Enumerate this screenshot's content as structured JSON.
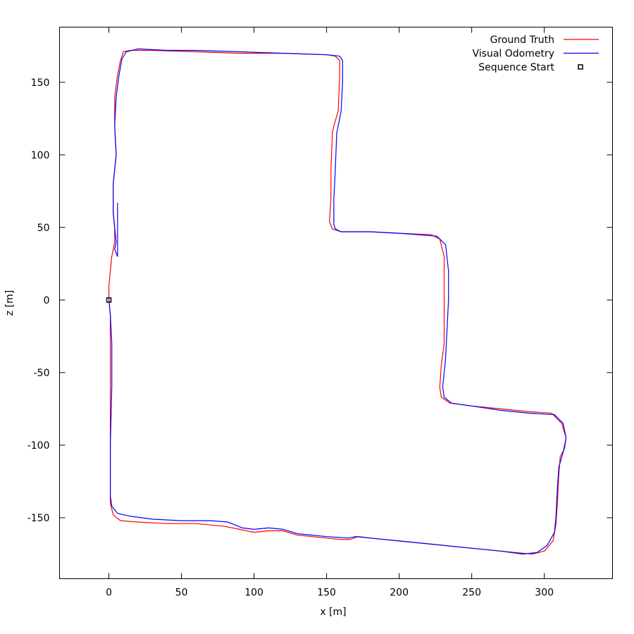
{
  "chart_data": {
    "type": "line",
    "title": "",
    "xlabel": "x [m]",
    "ylabel": "z [m]",
    "xlim": [
      -34,
      347
    ],
    "ylim": [
      -192,
      188
    ],
    "xticks": [
      0,
      50,
      100,
      150,
      200,
      250,
      300
    ],
    "yticks": [
      -150,
      -100,
      -50,
      0,
      50,
      100,
      150
    ],
    "grid": false,
    "legend_position": "top-right",
    "series": [
      {
        "name": "Ground Truth",
        "color": "#ff0000",
        "points": [
          [
            0,
            0
          ],
          [
            1,
            -10
          ],
          [
            1,
            -50
          ],
          [
            1,
            -100
          ],
          [
            1,
            -140
          ],
          [
            3,
            -148
          ],
          [
            8,
            -152
          ],
          [
            20,
            -153
          ],
          [
            40,
            -154
          ],
          [
            60,
            -154
          ],
          [
            80,
            -156
          ],
          [
            90,
            -158
          ],
          [
            100,
            -160
          ],
          [
            110,
            -159
          ],
          [
            120,
            -159
          ],
          [
            130,
            -162
          ],
          [
            140,
            -163
          ],
          [
            150,
            -164
          ],
          [
            160,
            -165
          ],
          [
            166,
            -165
          ],
          [
            172,
            -163
          ],
          [
            180,
            -164
          ],
          [
            200,
            -166
          ],
          [
            220,
            -168
          ],
          [
            240,
            -170
          ],
          [
            260,
            -172
          ],
          [
            280,
            -174
          ],
          [
            292,
            -175
          ],
          [
            300,
            -173
          ],
          [
            306,
            -166
          ],
          [
            308,
            -155
          ],
          [
            309,
            -140
          ],
          [
            310,
            -120
          ],
          [
            311,
            -108
          ],
          [
            314,
            -102
          ],
          [
            315,
            -95
          ],
          [
            312,
            -85
          ],
          [
            305,
            -78
          ],
          [
            290,
            -77
          ],
          [
            270,
            -75
          ],
          [
            250,
            -73
          ],
          [
            235,
            -71
          ],
          [
            229,
            -67
          ],
          [
            228,
            -60
          ],
          [
            229,
            -45
          ],
          [
            231,
            -30
          ],
          [
            231,
            -10
          ],
          [
            231,
            10
          ],
          [
            231,
            30
          ],
          [
            228,
            42
          ],
          [
            222,
            45
          ],
          [
            200,
            46
          ],
          [
            180,
            47
          ],
          [
            160,
            47
          ],
          [
            154,
            49
          ],
          [
            152,
            54
          ],
          [
            153,
            70
          ],
          [
            153,
            90
          ],
          [
            154,
            115
          ],
          [
            155,
            120
          ],
          [
            158,
            130
          ],
          [
            159,
            155
          ],
          [
            159,
            165
          ],
          [
            156,
            168
          ],
          [
            150,
            169
          ],
          [
            120,
            170
          ],
          [
            90,
            170
          ],
          [
            60,
            171
          ],
          [
            30,
            172
          ],
          [
            15,
            172
          ],
          [
            10,
            171
          ],
          [
            8,
            165
          ],
          [
            6,
            155
          ],
          [
            4,
            140
          ],
          [
            4,
            120
          ],
          [
            5,
            100
          ],
          [
            3,
            80
          ],
          [
            3,
            60
          ],
          [
            4,
            50
          ],
          [
            4,
            40
          ],
          [
            2,
            30
          ],
          [
            0,
            10
          ],
          [
            0,
            0
          ]
        ]
      },
      {
        "name": "Visual Odometry",
        "color": "#0000ff",
        "points": [
          [
            0,
            0
          ],
          [
            1,
            -10
          ],
          [
            2,
            -30
          ],
          [
            2,
            -60
          ],
          [
            1,
            -100
          ],
          [
            1,
            -135
          ],
          [
            2,
            -142
          ],
          [
            6,
            -147
          ],
          [
            15,
            -149
          ],
          [
            30,
            -151
          ],
          [
            50,
            -152
          ],
          [
            70,
            -152
          ],
          [
            82,
            -153
          ],
          [
            92,
            -157
          ],
          [
            100,
            -158
          ],
          [
            110,
            -157
          ],
          [
            120,
            -158
          ],
          [
            130,
            -161
          ],
          [
            150,
            -163
          ],
          [
            165,
            -164
          ],
          [
            170,
            -163
          ],
          [
            180,
            -164
          ],
          [
            200,
            -166
          ],
          [
            220,
            -168
          ],
          [
            250,
            -171
          ],
          [
            270,
            -173
          ],
          [
            285,
            -175
          ],
          [
            295,
            -174
          ],
          [
            302,
            -169
          ],
          [
            307,
            -160
          ],
          [
            308,
            -150
          ],
          [
            309,
            -130
          ],
          [
            310,
            -115
          ],
          [
            313,
            -105
          ],
          [
            315,
            -95
          ],
          [
            313,
            -85
          ],
          [
            307,
            -79
          ],
          [
            290,
            -78
          ],
          [
            270,
            -76
          ],
          [
            250,
            -73
          ],
          [
            236,
            -71
          ],
          [
            231,
            -67
          ],
          [
            230,
            -60
          ],
          [
            232,
            -40
          ],
          [
            233,
            -20
          ],
          [
            234,
            0
          ],
          [
            234,
            20
          ],
          [
            232,
            38
          ],
          [
            226,
            44
          ],
          [
            200,
            46
          ],
          [
            180,
            47
          ],
          [
            160,
            47
          ],
          [
            156,
            49
          ],
          [
            155,
            52
          ],
          [
            155,
            70
          ],
          [
            156,
            90
          ],
          [
            157,
            115
          ],
          [
            158,
            120
          ],
          [
            160,
            130
          ],
          [
            161,
            150
          ],
          [
            161,
            165
          ],
          [
            159,
            168
          ],
          [
            150,
            169
          ],
          [
            120,
            170
          ],
          [
            90,
            171
          ],
          [
            60,
            172
          ],
          [
            40,
            172
          ],
          [
            20,
            173
          ],
          [
            12,
            171
          ],
          [
            9,
            166
          ],
          [
            7,
            155
          ],
          [
            5,
            140
          ],
          [
            4,
            120
          ],
          [
            5,
            100
          ],
          [
            3,
            80
          ],
          [
            3,
            60
          ],
          [
            4,
            50
          ],
          [
            5,
            40
          ],
          [
            4,
            35
          ],
          [
            6,
            30
          ],
          [
            6,
            40
          ],
          [
            6,
            67
          ]
        ]
      }
    ],
    "markers": [
      {
        "name": "Sequence Start",
        "x": 0,
        "y": 0,
        "symbol": "open-square",
        "color": "#000000"
      }
    ]
  }
}
